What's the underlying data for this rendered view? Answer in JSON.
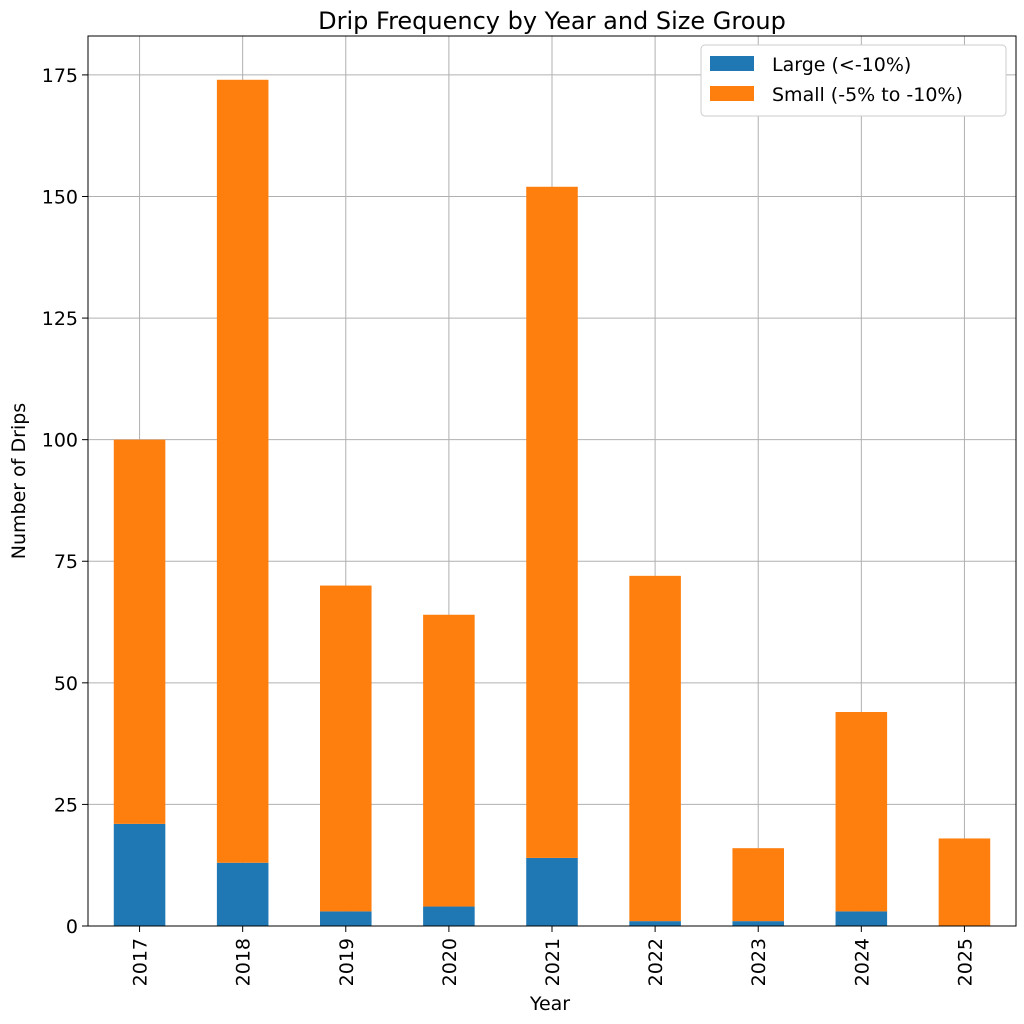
{
  "chart_data": {
    "type": "bar",
    "stacked": true,
    "title": "Drip Frequency by Year and Size Group",
    "xlabel": "Year",
    "ylabel": "Number of Drips",
    "categories": [
      "2017",
      "2018",
      "2019",
      "2020",
      "2021",
      "2022",
      "2023",
      "2024",
      "2025"
    ],
    "series": [
      {
        "name": "Large (<-10%)",
        "color": "#1f77b4",
        "values": [
          21,
          13,
          3,
          4,
          14,
          1,
          1,
          3,
          0
        ]
      },
      {
        "name": "Small (-5% to -10%)",
        "color": "#ff7f0e",
        "values": [
          79,
          161,
          67,
          60,
          138,
          71,
          15,
          41,
          18
        ]
      }
    ],
    "ylim": [
      0,
      183
    ],
    "yticks": [
      0,
      25,
      50,
      75,
      100,
      125,
      150,
      175
    ],
    "grid": true,
    "legend_position": "top-right"
  }
}
